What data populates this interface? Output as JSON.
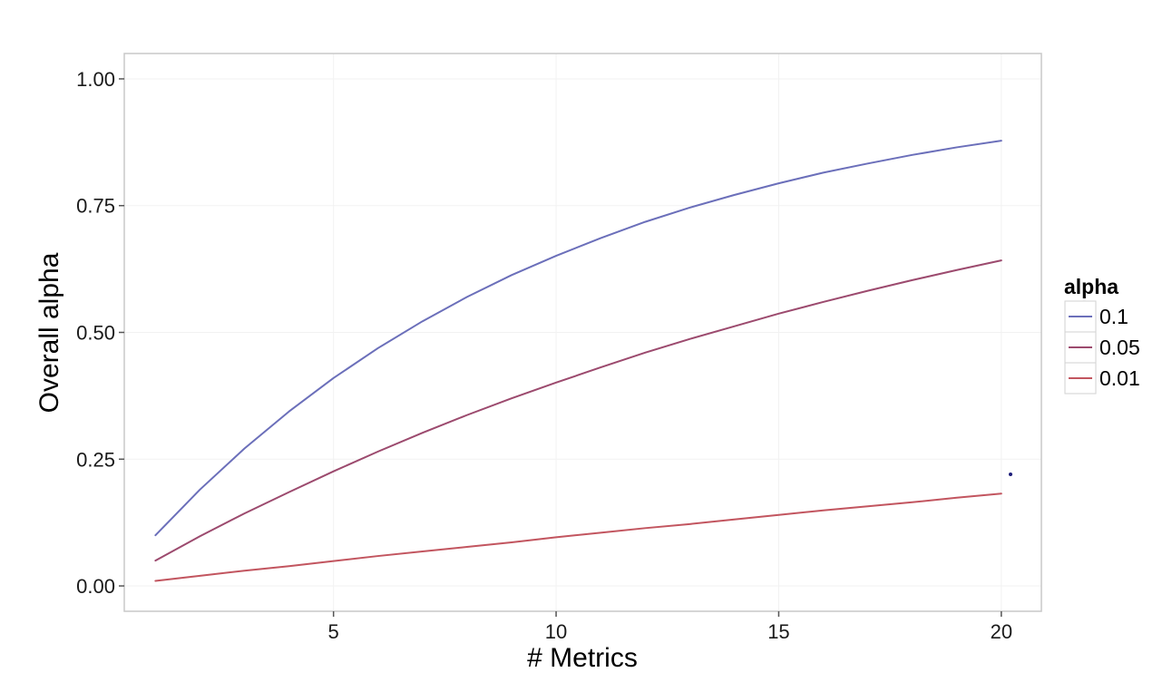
{
  "chart_data": {
    "type": "line",
    "xlabel": "# Metrics",
    "ylabel": "Overall alpha",
    "xlim": [
      0.3,
      20.9
    ],
    "ylim": [
      -0.05,
      1.05
    ],
    "x_ticks": [
      5,
      10,
      15,
      20
    ],
    "x_tick_labels": [
      "5",
      "10",
      "15",
      "20"
    ],
    "y_ticks": [
      0,
      0.25,
      0.5,
      0.75,
      1.0
    ],
    "y_tick_labels": [
      "0.00",
      "0.25",
      "0.50",
      "0.75",
      "1.00"
    ],
    "grid": true,
    "legend": {
      "title": "alpha",
      "placement": "right"
    },
    "x": [
      1,
      2,
      3,
      4,
      5,
      6,
      7,
      8,
      9,
      10,
      11,
      12,
      13,
      14,
      15,
      16,
      17,
      18,
      19,
      20
    ],
    "series": [
      {
        "name": "0.1",
        "color": "#6b6fba",
        "values": [
          0.1,
          0.19,
          0.271,
          0.344,
          0.41,
          0.469,
          0.522,
          0.57,
          0.613,
          0.651,
          0.686,
          0.718,
          0.746,
          0.771,
          0.794,
          0.815,
          0.833,
          0.85,
          0.865,
          0.878
        ]
      },
      {
        "name": "0.05",
        "color": "#9c4a6e",
        "values": [
          0.05,
          0.098,
          0.143,
          0.185,
          0.226,
          0.265,
          0.302,
          0.337,
          0.37,
          0.401,
          0.431,
          0.46,
          0.487,
          0.512,
          0.537,
          0.56,
          0.582,
          0.603,
          0.623,
          0.642
        ]
      },
      {
        "name": "0.01",
        "color": "#c2555f",
        "values": [
          0.01,
          0.02,
          0.03,
          0.039,
          0.049,
          0.059,
          0.068,
          0.077,
          0.086,
          0.096,
          0.105,
          0.114,
          0.122,
          0.131,
          0.14,
          0.149,
          0.157,
          0.165,
          0.174,
          0.182
        ]
      }
    ]
  },
  "colors": {
    "panel_border": "#c8c8c8",
    "grid_line": "#f2f2f2",
    "tick_mark": "#555555"
  }
}
